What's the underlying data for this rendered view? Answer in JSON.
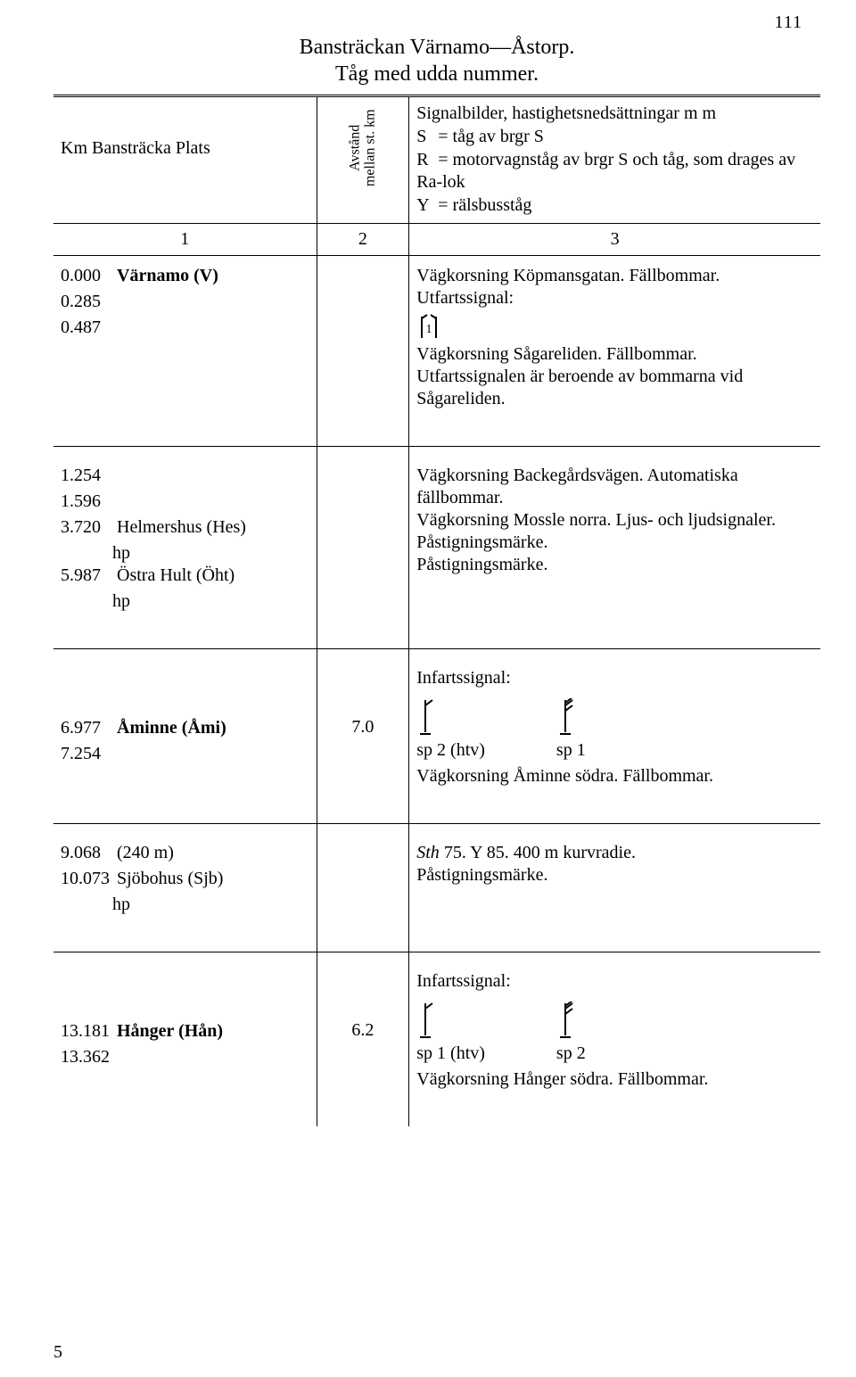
{
  "page_number": "111",
  "title_lines": [
    "Bansträckan Värnamo—Åstorp.",
    "Tåg med udda nummer."
  ],
  "header": {
    "col1": "Km  Bansträcka  Plats",
    "col2": "Avstånd\nmellan st. km",
    "col3_intro": "Signalbilder, hastighetsnedsättningar m m",
    "legend": [
      {
        "sym": "S",
        "text": "tåg av brgr S"
      },
      {
        "sym": "R",
        "text": "motorvagnståg av brgr S och tåg, som drages av Ra-lok"
      },
      {
        "sym": "Y",
        "text": "rälsbusståg"
      }
    ],
    "colnums": [
      "1",
      "2",
      "3"
    ]
  },
  "sections": [
    {
      "left": [
        {
          "km": "0.000",
          "text": "Värnamo  (V)",
          "bold": true
        },
        {
          "km": "0.285",
          "text": ""
        },
        {
          "km": "0.487",
          "text": ""
        }
      ],
      "mid": "",
      "right": [
        {
          "type": "text",
          "text": "Vägkorsning Köpmansgatan. Fällbommar."
        },
        {
          "type": "text",
          "text": "Utfartssignal:"
        },
        {
          "type": "signal",
          "variant": "dwarf"
        },
        {
          "type": "text",
          "text": "Vägkorsning Sågareliden. Fällbommar."
        },
        {
          "type": "text",
          "text": "Utfartssignalen är beroende av bommarna vid Sågareliden."
        }
      ]
    },
    {
      "left": [
        {
          "km": "1.254",
          "text": ""
        },
        {
          "km": "1.596",
          "text": ""
        },
        {
          "km": "3.720",
          "text": "Helmershus (Hes)",
          "hp": true
        },
        {
          "km": "5.987",
          "text": "Östra Hult (Öht)",
          "hp": true
        }
      ],
      "mid": "",
      "right": [
        {
          "type": "text",
          "text": "Vägkorsning Backegårdsvägen. Automatiska fällbommar."
        },
        {
          "type": "text",
          "text": "Vägkorsning Mossle norra. Ljus- och ljudsignaler."
        },
        {
          "type": "text",
          "text": "Påstigningsmärke."
        },
        {
          "type": "text",
          "text": "Påstigningsmärke."
        }
      ]
    },
    {
      "left": [
        {
          "km": "6.977",
          "text": "Åminne  (Åmi)",
          "bold": true
        },
        {
          "km": "7.254",
          "text": ""
        }
      ],
      "mid": "7.0",
      "right": [
        {
          "type": "text",
          "text": "Infartssignal:"
        },
        {
          "type": "signal-pair",
          "a_label": "sp 2 (htv)",
          "b_label": "sp 1"
        },
        {
          "type": "text",
          "text": "Vägkorsning Åminne södra. Fällbommar."
        }
      ]
    },
    {
      "left": [
        {
          "km": "9.068",
          "text": "(240 m)"
        },
        {
          "km": "10.073",
          "text": "Sjöbohus (Sjb)",
          "hp": true
        }
      ],
      "mid": "",
      "right": [
        {
          "type": "rich",
          "parts": [
            {
              "text": "Sth",
              "italic": true
            },
            {
              "text": " 75. Y 85. 400 m kurvradie."
            }
          ]
        },
        {
          "type": "text",
          "text": "Påstigningsmärke."
        }
      ]
    },
    {
      "left": [
        {
          "km": "13.181",
          "text": "Hånger (Hån)",
          "bold": true
        },
        {
          "km": "13.362",
          "text": ""
        }
      ],
      "mid": "6.2",
      "right": [
        {
          "type": "text",
          "text": "Infartssignal:"
        },
        {
          "type": "signal-pair",
          "a_label": "sp 1 (htv)",
          "b_label": "sp 2"
        },
        {
          "type": "text",
          "text": "Vägkorsning Hånger södra. Fällbommar."
        }
      ]
    }
  ],
  "footer_num": "5"
}
